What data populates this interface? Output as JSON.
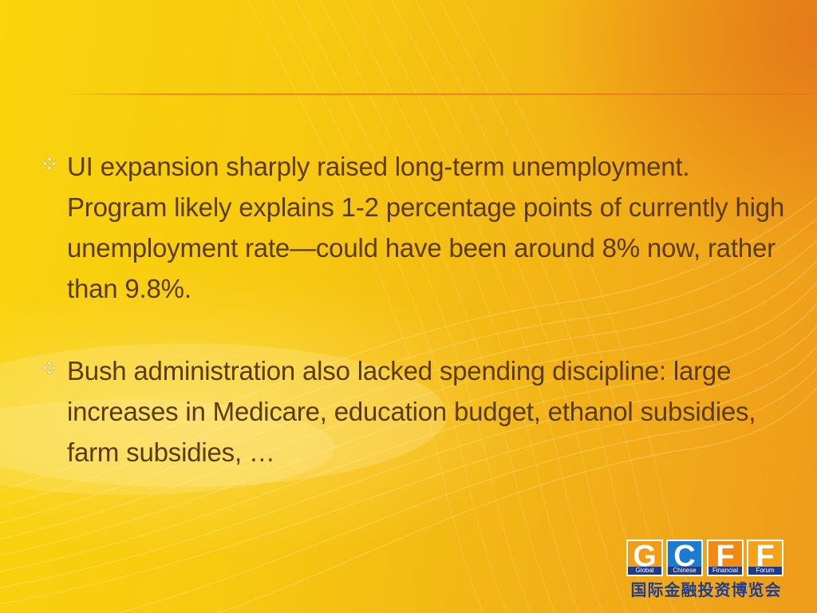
{
  "slide": {
    "bullets": [
      {
        "text": "UI expansion sharply raised long-term unemployment.  Program likely explains 1-2 percentage points of currently high unemployment rate—could have been around 8% now, rather than 9.8%."
      },
      {
        "text": "Bush administration also lacked spending discipline: large increases in Medicare, education budget, ethanol subsidies, farm subsidies, …"
      }
    ],
    "bullet_icon": "four-diamond-icon",
    "colors": {
      "text": "#5a3b14",
      "background_start": "#f9d50d",
      "background_end": "#ee9b1b",
      "accent": "#e8781e"
    }
  },
  "logo": {
    "letters": [
      "G",
      "C",
      "F",
      "F"
    ],
    "sublabels": [
      "Global",
      "Chinese",
      "Financial",
      "Forum"
    ],
    "chinese": "国际金融投资博览会",
    "colors": {
      "orange": "#f39a16",
      "blue": "#1c7ad0",
      "navy": "#1e3a8a"
    }
  }
}
